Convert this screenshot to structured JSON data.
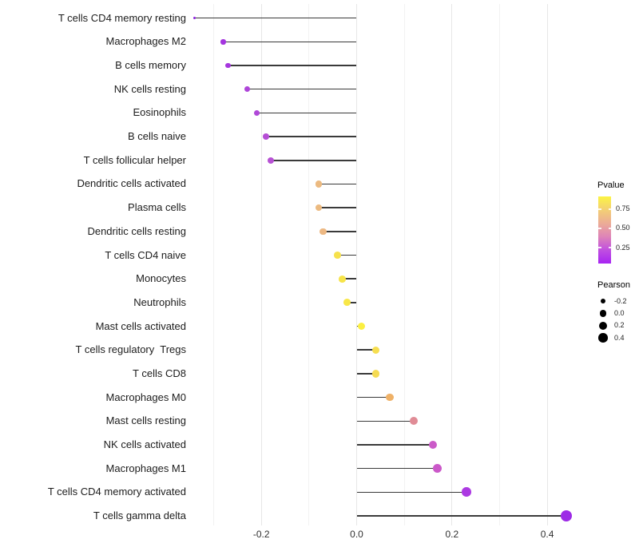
{
  "chart_data": {
    "type": "lollipop",
    "orientation": "horizontal",
    "title": "",
    "xlabel": "",
    "ylabel": "",
    "x_ticks": [
      -0.2,
      0.0,
      0.2,
      0.4
    ],
    "x_tick_labels": [
      "-0.2",
      "0.0",
      "0.2",
      "0.4"
    ],
    "xlim": [
      -0.36,
      0.47
    ],
    "grid": {
      "major": [
        -0.2,
        0.0,
        0.2,
        0.4
      ],
      "minor": [
        -0.3,
        -0.1,
        0.1,
        0.3
      ]
    },
    "points": [
      {
        "category": "T cells CD4 memory resting",
        "pearson": -0.34,
        "dot_color": "#8E21E0",
        "radius": 1.7
      },
      {
        "category": "Macrophages M2",
        "pearson": -0.28,
        "dot_color": "#A435DF",
        "radius": 3.2
      },
      {
        "category": "B cells memory",
        "pearson": -0.27,
        "dot_color": "#A637DE",
        "radius": 3.3
      },
      {
        "category": "NK cells resting",
        "pearson": -0.23,
        "dot_color": "#AE45D9",
        "radius": 3.6
      },
      {
        "category": "Eosinophils",
        "pearson": -0.21,
        "dot_color": "#B048D8",
        "radius": 3.7
      },
      {
        "category": "B cells naive",
        "pearson": -0.19,
        "dot_color": "#B54ED5",
        "radius": 3.9
      },
      {
        "category": "T cells follicular helper",
        "pearson": -0.18,
        "dot_color": "#B751D4",
        "radius": 4.0
      },
      {
        "category": "Dendritic cells activated",
        "pearson": -0.08,
        "dot_color": "#ECBA80",
        "radius": 4.2
      },
      {
        "category": "Plasma cells",
        "pearson": -0.08,
        "dot_color": "#ECBA80",
        "radius": 4.2
      },
      {
        "category": "Dendritic cells resting",
        "pearson": -0.07,
        "dot_color": "#EDB883",
        "radius": 4.3
      },
      {
        "category": "T cells CD4 naive",
        "pearson": -0.04,
        "dot_color": "#F6E14C",
        "radius": 4.3
      },
      {
        "category": "Monocytes",
        "pearson": -0.03,
        "dot_color": "#F7E44A",
        "radius": 4.4
      },
      {
        "category": "Neutrophils",
        "pearson": -0.02,
        "dot_color": "#F8E748",
        "radius": 4.4
      },
      {
        "category": "Mast cells activated",
        "pearson": 0.01,
        "dot_color": "#FBEF41",
        "radius": 4.5
      },
      {
        "category": "T cells regulatory  Tregs",
        "pearson": 0.04,
        "dot_color": "#F6DE50",
        "radius": 4.6
      },
      {
        "category": "T cells CD8",
        "pearson": 0.04,
        "dot_color": "#F5DB53",
        "radius": 4.7
      },
      {
        "category": "Macrophages M0",
        "pearson": 0.07,
        "dot_color": "#EFB167",
        "radius": 4.9
      },
      {
        "category": "Mast cells resting",
        "pearson": 0.12,
        "dot_color": "#E08C96",
        "radius": 5.1
      },
      {
        "category": "NK cells activated",
        "pearson": 0.16,
        "dot_color": "#CB5BC8",
        "radius": 5.4
      },
      {
        "category": "Macrophages M1",
        "pearson": 0.17,
        "dot_color": "#CB58C9",
        "radius": 5.5
      },
      {
        "category": "T cells CD4 memory activated",
        "pearson": 0.23,
        "dot_color": "#AC39E2",
        "radius": 5.9
      },
      {
        "category": "T cells gamma delta",
        "pearson": 0.44,
        "dot_color": "#9D2AE6",
        "radius": 7.2
      }
    ],
    "legend": {
      "color": {
        "title": "Pvalue",
        "tick_labels": [
          "0.75",
          "0.50",
          "0.25"
        ],
        "gradient_stops": [
          {
            "pos": 0,
            "color": "#FCF443"
          },
          {
            "pos": 20,
            "color": "#F3CF75"
          },
          {
            "pos": 40,
            "color": "#ECAC96"
          },
          {
            "pos": 60,
            "color": "#DE84B8"
          },
          {
            "pos": 80,
            "color": "#C04FE0"
          },
          {
            "pos": 100,
            "color": "#A724F2"
          }
        ]
      },
      "size": {
        "title": "Pearson",
        "dot_color": "#000000",
        "entries": [
          {
            "label": "-0.2",
            "radius": 3.2
          },
          {
            "label": "0.0",
            "radius": 4.2
          },
          {
            "label": "0.2",
            "radius": 5.0
          },
          {
            "label": "0.4",
            "radius": 5.8
          }
        ]
      }
    },
    "colors": {
      "stem": "#3A3A3A",
      "grid_major": "#E7E7E7",
      "grid_minor": "#F2F2F2",
      "background": "#FFFFFF"
    }
  }
}
